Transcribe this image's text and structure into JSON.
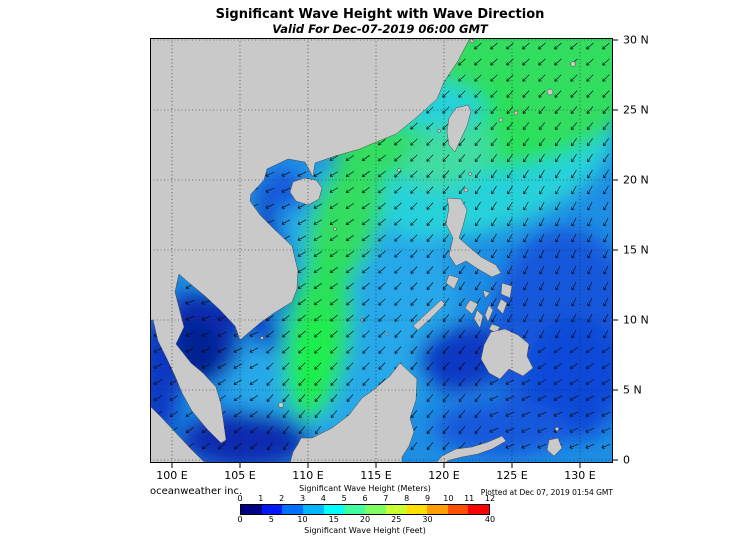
{
  "title": "Significant Wave Height with Wave Direction",
  "subtitle": "Valid For Dec-07-2019 06:00 GMT",
  "map": {
    "lon_ticks": [
      "100 E",
      "105 E",
      "110 E",
      "115 E",
      "120 E",
      "125 E",
      "130 E"
    ],
    "lat_ticks": [
      "30 N",
      "25 N",
      "20 N",
      "15 N",
      "10 N",
      "5 N",
      "0"
    ],
    "land_color": "#c9c9c9",
    "land_edge_color": "#4a4a4a",
    "grid_color": "#1a1a1a",
    "arrow_color": "#0a0a0a",
    "palette": {
      "sea_base": "#1e8ee4",
      "deep": "#0a2cb0",
      "deeper": "#05208f",
      "dark": "#0d38c4",
      "midblue": "#1558dc",
      "blue2": "#1148d8",
      "lightblue": "#27a8ea",
      "cyan": "#28d2da",
      "teal": "#3fdca2",
      "green": "#33dd60",
      "green2": "#2ae158",
      "bright": "#1df04c"
    }
  },
  "footer": {
    "credit": "oceanweather inc.",
    "plotted": "Plotted at Dec 07, 2019 01:54 GMT"
  },
  "colorbar": {
    "meters_label": "Significant Wave Height (Meters)",
    "feet_label": "Significant Wave Height (Feet)",
    "meters_ticks": [
      "0",
      "1",
      "2",
      "3",
      "4",
      "5",
      "6",
      "7",
      "8",
      "9",
      "10",
      "11",
      "12"
    ],
    "feet_ticks": [
      "0",
      "5",
      "10",
      "15",
      "20",
      "25",
      "30",
      "40"
    ],
    "colors": [
      "#000082",
      "#0018ff",
      "#0070ff",
      "#00b8ff",
      "#00ffff",
      "#40ffa0",
      "#80ff60",
      "#c8ff30",
      "#ffe000",
      "#ffa000",
      "#ff5000",
      "#ff0000"
    ]
  },
  "chart_data": {
    "type": "heatmap",
    "title": "Significant Wave Height with Wave Direction",
    "subtitle": "Valid For Dec-07-2019 06:00 GMT",
    "region": "South China Sea, Philippine Sea and surrounding waters",
    "x_axis": {
      "label": "Longitude",
      "tick_labels": [
        "100 E",
        "105 E",
        "110 E",
        "115 E",
        "120 E",
        "125 E",
        "130 E"
      ],
      "range_deg_east": [
        98.4,
        132.4
      ]
    },
    "y_axis": {
      "label": "Latitude",
      "tick_labels": [
        "0",
        "5 N",
        "10 N",
        "15 N",
        "20 N",
        "25 N",
        "30 N"
      ],
      "range_deg_north": [
        0,
        30
      ]
    },
    "grid": "5-degree dotted graticule",
    "legend": {
      "meters": {
        "range": [
          0,
          12
        ],
        "ticks": [
          0,
          1,
          2,
          3,
          4,
          5,
          6,
          7,
          8,
          9,
          10,
          11,
          12
        ]
      },
      "feet": {
        "range": [
          0,
          40
        ],
        "ticks": [
          0,
          5,
          10,
          15,
          20,
          25,
          30,
          40
        ]
      }
    },
    "vectors": "Wave direction arrows over water, predominantly pointing toward the southwest (northeast monsoon swell)",
    "features": [
      {
        "area": "Philippine Sea northeast of Taiwan (upper-right)",
        "wave_height_m": 3.0
      },
      {
        "area": "Luzon Strait / Bashi Channel",
        "wave_height_m": 2.5
      },
      {
        "area": "Taiwan Strait and south China coastal waters",
        "wave_height_m": 2.0
      },
      {
        "area": "Central South China Sea tongue off Vietnam",
        "wave_height_m": 2.5
      },
      {
        "area": "Open South China Sea",
        "wave_height_m": 1.5
      },
      {
        "area": "Eastern Philippine Sea (8-15 N)",
        "wave_height_m": 1.2
      },
      {
        "area": "Gulf of Thailand",
        "wave_height_m": 0.5
      },
      {
        "area": "Gulf of Tonkin",
        "wave_height_m": 1.0
      },
      {
        "area": "Sulu Sea",
        "wave_height_m": 0.8
      },
      {
        "area": "Celebes Sea",
        "wave_height_m": 1.0
      },
      {
        "area": "Karimata / Java Sea (bottom-left)",
        "wave_height_m": 0.6
      }
    ],
    "plotted_at": "Dec 07, 2019 01:54 GMT",
    "credit": "oceanweather inc."
  }
}
